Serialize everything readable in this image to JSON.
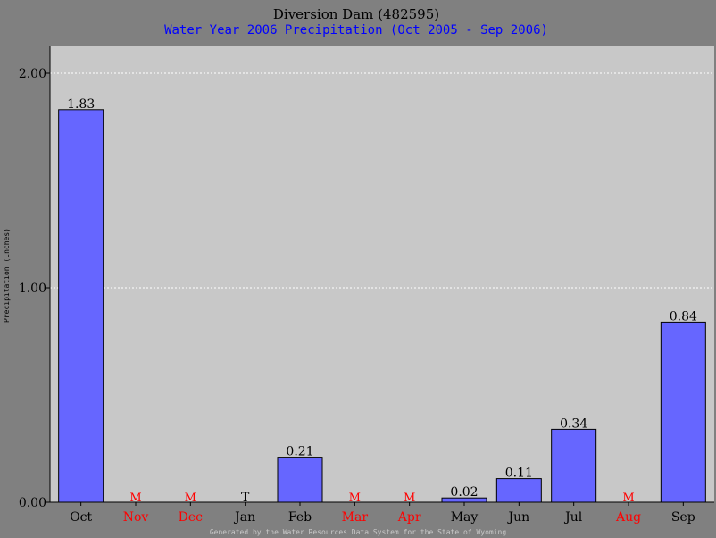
{
  "chart_data": {
    "type": "bar",
    "title": "Diversion Dam (482595)",
    "subtitle": "Water Year 2006 Precipitation (Oct 2005 - Sep 2006)",
    "ylabel": "Precipitation (Inches)",
    "footer": "Generated by the Water Resources Data System for the State of Wyoming",
    "ylim": [
      0,
      2.0
    ],
    "yticks": [
      "0.00",
      "1.00",
      "2.00"
    ],
    "yticks_values": [
      0,
      1,
      2
    ],
    "grid": true,
    "categories": [
      "Oct",
      "Nov",
      "Dec",
      "Jan",
      "Feb",
      "Mar",
      "Apr",
      "May",
      "Jun",
      "Jul",
      "Aug",
      "Sep"
    ],
    "values": [
      1.83,
      null,
      null,
      0,
      0.21,
      null,
      null,
      0.02,
      0.11,
      0.34,
      null,
      0.84
    ],
    "labels": [
      "1.83",
      "M",
      "M",
      "T",
      "0.21",
      "M",
      "M",
      "0.02",
      "0.11",
      "0.34",
      "M",
      "0.84"
    ],
    "missing": [
      false,
      true,
      true,
      false,
      false,
      true,
      true,
      false,
      false,
      false,
      true,
      false
    ],
    "colors": {
      "bar": "#6666ff",
      "bar_stroke": "#000000",
      "plot_bg": "#c8c8c8",
      "page_bg": "#808080",
      "grid": "#ffffff",
      "missing": "#ff0000",
      "normal": "#000000"
    }
  }
}
